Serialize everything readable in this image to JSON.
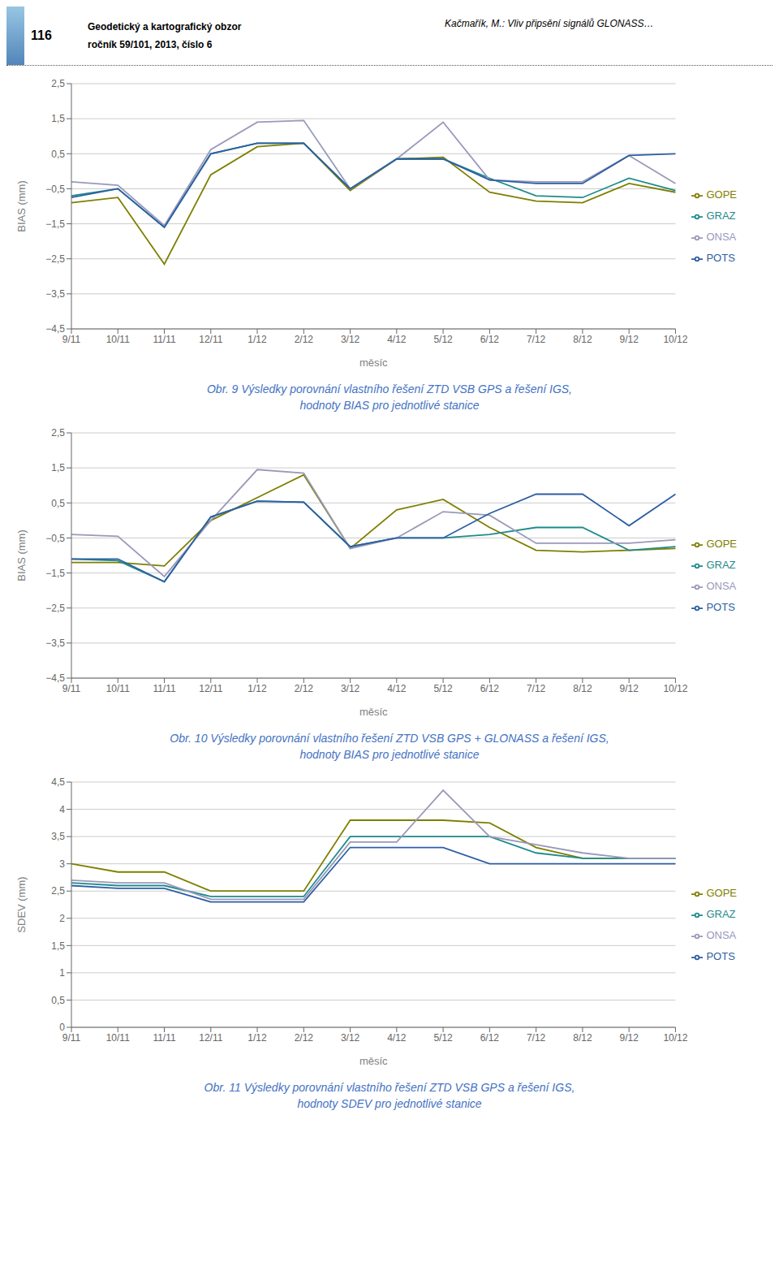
{
  "annotations": [
    "116",
    "Geodetický a kartografický obzor",
    "ročník 59/101, 2013, číslo 6",
    "Kačmařík, M.: Vliv připsění signálů GLONASS…"
  ],
  "chart_data": [
    {
      "type": "line",
      "title": "Obr. 9 Výsledky porovnání vlastního řešení ZTD VSB GPS a řešení IGS,\nhodnoty BIAS pro jednotlivé stanice",
      "x_label": "měsíc",
      "y_label": "BIAS (mm)",
      "categories": [
        "9/11",
        "10/11",
        "11/11",
        "12/11",
        "1/12",
        "2/12",
        "3/12",
        "4/12",
        "5/12",
        "6/12",
        "7/12",
        "8/12",
        "9/12",
        "10/12"
      ],
      "series": [
        {
          "name": "GOPE",
          "color": "#7f7f00",
          "values": [
            -0.9,
            -0.75,
            -2.65,
            -0.1,
            0.7,
            0.8,
            -0.55,
            0.35,
            0.4,
            -0.6,
            -0.85,
            -0.9,
            -0.35,
            -0.6
          ]
        },
        {
          "name": "GRAZ",
          "color": "#1f8b8b",
          "values": [
            -0.7,
            -0.5,
            -1.6,
            0.5,
            0.8,
            0.8,
            -0.5,
            0.35,
            0.35,
            -0.2,
            -0.7,
            -0.75,
            -0.2,
            -0.55
          ]
        },
        {
          "name": "ONSA",
          "color": "#9999bb",
          "values": [
            -0.3,
            -0.4,
            -1.55,
            0.62,
            1.4,
            1.45,
            -0.5,
            0.35,
            1.4,
            -0.25,
            -0.3,
            -0.3,
            0.45,
            -0.35
          ]
        },
        {
          "name": "POTS",
          "color": "#2e5fa3",
          "values": [
            -0.75,
            -0.5,
            -1.6,
            0.5,
            0.8,
            0.8,
            -0.5,
            0.35,
            0.35,
            -0.25,
            -0.35,
            -0.35,
            0.45,
            0.5
          ]
        }
      ],
      "ylim": [
        -4.5,
        2.5
      ],
      "yticks": [
        {
          "value": 2.5,
          "label": "2,5"
        },
        {
          "value": 1.5,
          "label": "1,5"
        },
        {
          "value": 0.5,
          "label": "0,5"
        },
        {
          "value": -0.5,
          "label": "−0,5"
        },
        {
          "value": -1.5,
          "label": "−1,5"
        },
        {
          "value": -2.5,
          "label": "−2,5"
        },
        {
          "value": -3.5,
          "label": "−3,5"
        },
        {
          "value": -4.5,
          "label": "−4,5"
        }
      ],
      "grid": true,
      "legend": "right"
    },
    {
      "type": "line",
      "title": "Obr. 10 Výsledky porovnání vlastního řešení ZTD VSB GPS + GLONASS a řešení IGS,\nhodnoty BIAS pro jednotlivé stanice",
      "x_label": "měsíc",
      "y_label": "BIAS (mm)",
      "categories": [
        "9/11",
        "10/11",
        "11/11",
        "12/11",
        "1/12",
        "2/12",
        "3/12",
        "4/12",
        "5/12",
        "6/12",
        "7/12",
        "8/12",
        "9/12",
        "10/12"
      ],
      "series": [
        {
          "name": "GOPE",
          "color": "#7f7f00",
          "values": [
            -1.2,
            -1.2,
            -1.3,
            0.0,
            0.65,
            1.3,
            -0.8,
            0.3,
            0.6,
            -0.2,
            -0.85,
            -0.9,
            -0.85,
            -0.8
          ]
        },
        {
          "name": "GRAZ",
          "color": "#1f8b8b",
          "values": [
            -1.1,
            -1.15,
            -1.75,
            0.1,
            0.55,
            0.52,
            -0.75,
            -0.5,
            -0.5,
            -0.4,
            -0.2,
            -0.2,
            -0.85,
            -0.75
          ]
        },
        {
          "name": "ONSA",
          "color": "#9999bb",
          "values": [
            -0.4,
            -0.45,
            -1.6,
            0.0,
            1.45,
            1.35,
            -0.8,
            -0.5,
            0.25,
            0.15,
            -0.65,
            -0.65,
            -0.65,
            -0.55
          ]
        },
        {
          "name": "POTS",
          "color": "#2e5fa3",
          "values": [
            -1.1,
            -1.1,
            -1.75,
            0.1,
            0.55,
            0.52,
            -0.75,
            -0.5,
            -0.5,
            0.2,
            0.75,
            0.75,
            -0.15,
            0.75
          ]
        }
      ],
      "ylim": [
        -4.5,
        2.5
      ],
      "yticks": [
        {
          "value": 2.5,
          "label": "2,5"
        },
        {
          "value": 1.5,
          "label": "1,5"
        },
        {
          "value": 0.5,
          "label": "0,5"
        },
        {
          "value": -0.5,
          "label": "−0,5"
        },
        {
          "value": -1.5,
          "label": "−1,5"
        },
        {
          "value": -2.5,
          "label": "−2,5"
        },
        {
          "value": -3.5,
          "label": "−3,5"
        },
        {
          "value": -4.5,
          "label": "−4,5"
        }
      ],
      "grid": true,
      "legend": "right"
    },
    {
      "type": "line",
      "title": "Obr. 11 Výsledky porovnání vlastního řešení ZTD VSB GPS a řešení IGS,\nhodnoty SDEV pro jednotlivé stanice",
      "x_label": "měsíc",
      "y_label": "SDEV (mm)",
      "categories": [
        "9/11",
        "10/11",
        "11/11",
        "12/11",
        "1/12",
        "2/12",
        "3/12",
        "4/12",
        "5/12",
        "6/12",
        "7/12",
        "8/12",
        "9/12",
        "10/12"
      ],
      "series": [
        {
          "name": "GOPE",
          "color": "#7f7f00",
          "values": [
            3.0,
            2.85,
            2.85,
            2.5,
            2.5,
            2.5,
            3.8,
            3.8,
            3.8,
            3.75,
            3.3,
            3.1,
            3.1,
            3.1
          ]
        },
        {
          "name": "GRAZ",
          "color": "#1f8b8b",
          "values": [
            2.65,
            2.6,
            2.6,
            2.4,
            2.4,
            2.4,
            3.5,
            3.5,
            3.5,
            3.5,
            3.2,
            3.1,
            3.1,
            3.1
          ]
        },
        {
          "name": "ONSA",
          "color": "#9999bb",
          "values": [
            2.7,
            2.65,
            2.65,
            2.35,
            2.35,
            2.35,
            3.4,
            3.4,
            4.35,
            3.5,
            3.35,
            3.2,
            3.1,
            3.1
          ]
        },
        {
          "name": "POTS",
          "color": "#2e5fa3",
          "values": [
            2.6,
            2.55,
            2.55,
            2.3,
            2.3,
            2.3,
            3.3,
            3.3,
            3.3,
            3.0,
            3.0,
            3.0,
            3.0,
            3.0
          ]
        }
      ],
      "ylim": [
        0.0,
        4.5
      ],
      "yticks": [
        0,
        {
          "value": 0.5,
          "label": "0,5"
        },
        1,
        {
          "value": 1.5,
          "label": "1,5"
        },
        2,
        {
          "value": 2.5,
          "label": "2,5"
        },
        3,
        {
          "value": 3.5,
          "label": "3,5"
        },
        4,
        {
          "value": 4.5,
          "label": "4,5"
        }
      ],
      "grid": true,
      "legend": "right"
    }
  ]
}
